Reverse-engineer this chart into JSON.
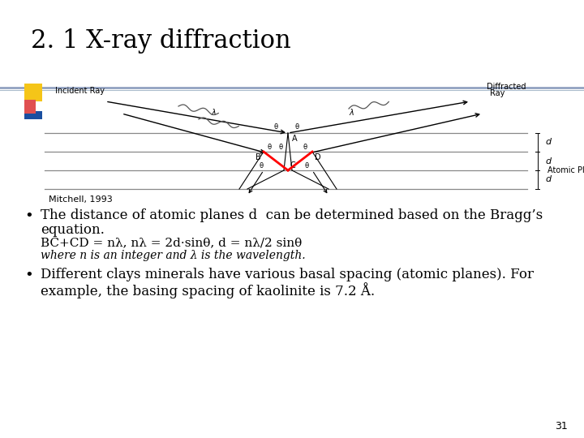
{
  "title": "2. 1 X-ray diffraction",
  "title_fontsize": 22,
  "title_font": "serif",
  "background_color": "#ffffff",
  "mitchell_text": "Mitchell, 1993",
  "bullet1_line1": "The distance of atomic planes d  can be determined based on the Bragg’s",
  "bullet1_line2": "equation.",
  "equation": "BC+CD = nλ, nλ = 2d·sinθ, d = nλ/2 sinθ",
  "where_text": "where n is an integer and λ is the wavelength.",
  "bullet2_line1": "Different clays minerals have various basal spacing (atomic planes). For",
  "bullet2_line2": "example, the basing spacing of kaolinite is 7.2 Å.",
  "body_fontsize": 12,
  "equation_fontsize": 11,
  "small_fontsize": 10,
  "page_number": "31",
  "header_line_color1": "#8899bb",
  "header_line_color2": "#aabbcc",
  "accent_yellow": "#f5c518",
  "accent_red": "#e05050",
  "accent_blue": "#1a4fa0"
}
